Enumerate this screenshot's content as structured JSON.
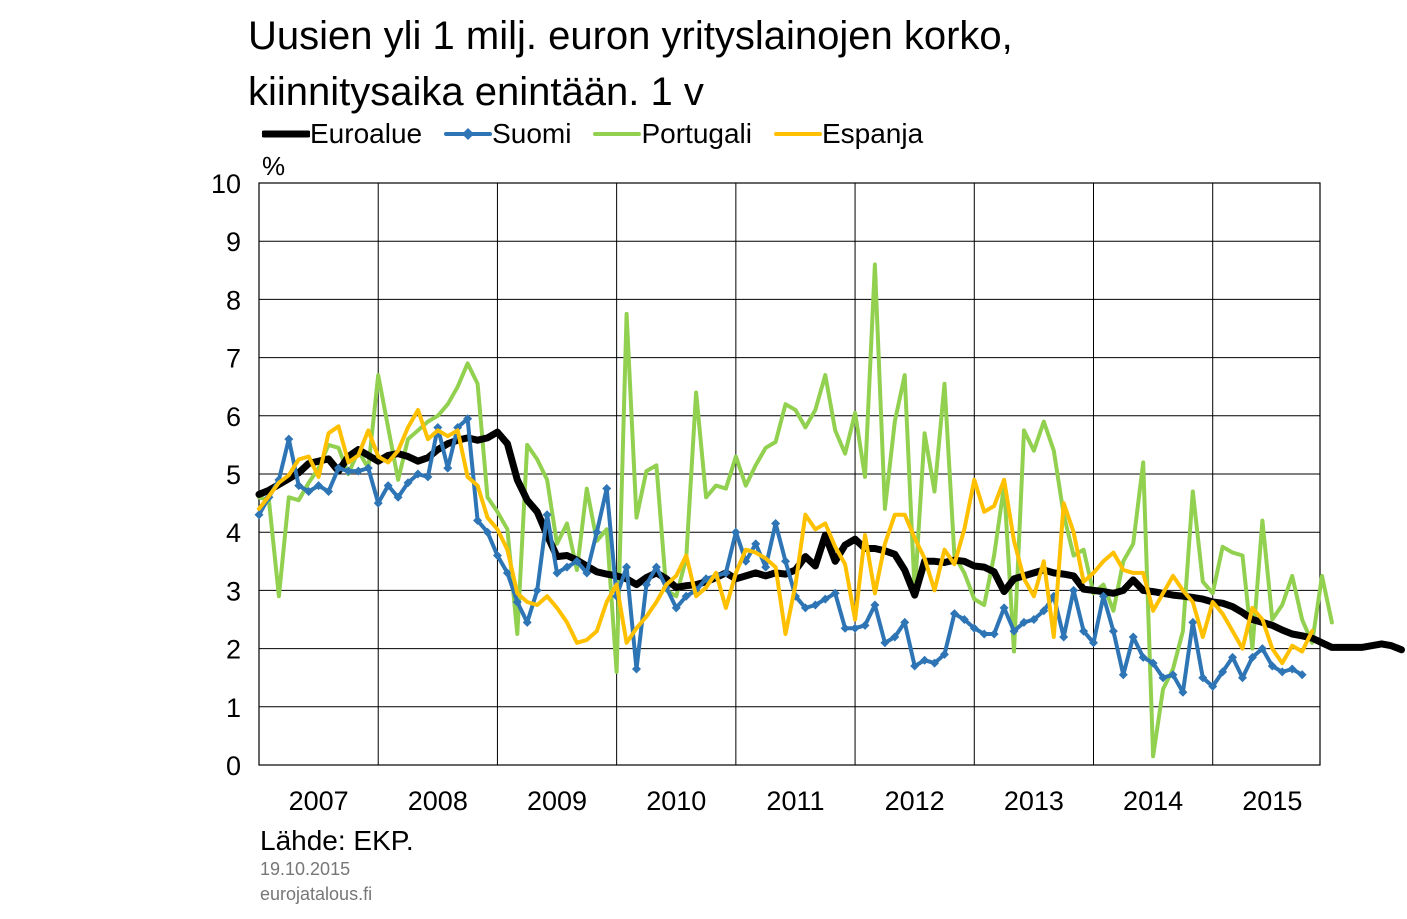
{
  "chart_data": {
    "type": "line",
    "title_lines": [
      "Uusien yli 1 milj. euron yrityslainojen korko,",
      "kiinnitysaika enintään. 1 v"
    ],
    "ylabel": "%",
    "ylim": [
      0,
      10
    ],
    "yticks": [
      0,
      1,
      2,
      3,
      4,
      5,
      6,
      7,
      8,
      9,
      10
    ],
    "xlim": [
      2007,
      2015.9
    ],
    "xtick_labels": [
      "2007",
      "2008",
      "2009",
      "2010",
      "2011",
      "2012",
      "2013",
      "2014",
      "2015"
    ],
    "grid": true,
    "legend_position": "top",
    "series": [
      {
        "name": "Euroalue",
        "color": "#000000",
        "marker": "none",
        "start": 2007.0,
        "step": 0.0833333,
        "values": [
          4.65,
          4.72,
          4.82,
          4.92,
          5.02,
          5.18,
          5.22,
          5.26,
          5.05,
          5.3,
          5.42,
          5.32,
          5.22,
          5.32,
          5.35,
          5.3,
          5.22,
          5.28,
          5.42,
          5.52,
          5.58,
          5.62,
          5.58,
          5.62,
          5.72,
          5.52,
          4.9,
          4.55,
          4.35,
          3.95,
          3.58,
          3.6,
          3.52,
          3.42,
          3.32,
          3.28,
          3.25,
          3.2,
          3.1,
          3.22,
          3.3,
          3.2,
          3.05,
          3.08,
          3.1,
          3.15,
          3.22,
          3.3,
          3.2,
          3.25,
          3.3,
          3.25,
          3.3,
          3.28,
          3.35,
          3.58,
          3.42,
          3.95,
          3.5,
          3.78,
          3.88,
          3.72,
          3.72,
          3.68,
          3.62,
          3.35,
          2.92,
          3.5,
          3.5,
          3.48,
          3.52,
          3.5,
          3.42,
          3.4,
          3.32,
          2.98,
          3.2,
          3.25,
          3.3,
          3.35,
          3.3,
          3.28,
          3.25,
          3.02,
          3.0,
          2.98,
          2.95,
          3.0,
          3.18,
          3.0,
          2.98,
          2.95,
          2.92,
          2.9,
          2.88,
          2.85,
          2.8,
          2.78,
          2.72,
          2.62,
          2.5,
          2.45,
          2.4,
          2.32,
          2.25,
          2.22,
          2.18,
          2.1,
          2.02,
          2.02,
          2.02,
          2.02,
          2.05,
          2.08,
          2.05,
          1.98
        ]
      },
      {
        "name": "Suomi",
        "color": "#2E75B6",
        "marker": "diamond",
        "start": 2007.0,
        "step": 0.0833333,
        "values": [
          4.3,
          4.6,
          4.9,
          5.6,
          4.8,
          4.7,
          4.8,
          4.7,
          5.1,
          5.05,
          5.05,
          5.1,
          4.5,
          4.8,
          4.6,
          4.85,
          5.0,
          4.95,
          5.8,
          5.1,
          5.8,
          5.95,
          4.2,
          4.0,
          3.6,
          3.3,
          2.8,
          2.45,
          3.0,
          4.3,
          3.3,
          3.4,
          3.5,
          3.3,
          4.0,
          4.75,
          2.9,
          3.4,
          1.65,
          3.1,
          3.4,
          3.05,
          2.7,
          2.9,
          3.0,
          3.2,
          3.25,
          3.3,
          4.0,
          3.5,
          3.8,
          3.4,
          4.15,
          3.5,
          2.9,
          2.7,
          2.75,
          2.85,
          2.95,
          2.35,
          2.35,
          2.4,
          2.75,
          2.1,
          2.2,
          2.45,
          1.7,
          1.8,
          1.75,
          1.9,
          2.6,
          2.5,
          2.35,
          2.25,
          2.25,
          2.7,
          2.3,
          2.45,
          2.5,
          2.65,
          2.9,
          2.2,
          3.0,
          2.3,
          2.1,
          2.9,
          2.3,
          1.55,
          2.2,
          1.85,
          1.75,
          1.5,
          1.55,
          1.25,
          2.45,
          1.5,
          1.35,
          1.6,
          1.85,
          1.5,
          1.85,
          2.0,
          1.7,
          1.6,
          1.65,
          1.55
        ]
      },
      {
        "name": "Portugali",
        "color": "#92D050",
        "marker": "none",
        "start": 2007.0,
        "step": 0.0833333,
        "values": [
          4.6,
          4.55,
          2.9,
          4.6,
          4.55,
          4.85,
          5.1,
          5.5,
          5.45,
          5.0,
          5.4,
          5.1,
          6.7,
          5.8,
          4.9,
          5.6,
          5.75,
          5.9,
          6.0,
          6.2,
          6.5,
          6.9,
          6.55,
          4.6,
          4.35,
          4.05,
          2.25,
          5.5,
          5.25,
          4.9,
          3.8,
          4.15,
          3.35,
          4.75,
          3.85,
          4.05,
          1.6,
          7.75,
          4.25,
          5.05,
          5.15,
          3.0,
          2.9,
          3.55,
          6.4,
          4.6,
          4.8,
          4.75,
          5.3,
          4.8,
          5.15,
          5.45,
          5.55,
          6.2,
          6.1,
          5.8,
          6.1,
          6.7,
          5.75,
          5.35,
          6.05,
          4.95,
          8.6,
          4.4,
          5.9,
          6.7,
          2.95,
          5.7,
          4.7,
          6.55,
          3.6,
          3.3,
          2.85,
          2.75,
          3.6,
          4.8,
          1.95,
          5.75,
          5.4,
          5.9,
          5.4,
          4.3,
          3.6,
          3.7,
          2.95,
          3.1,
          2.65,
          3.5,
          3.8,
          5.2,
          0.15,
          1.3,
          1.65,
          2.3,
          4.7,
          3.15,
          2.95,
          3.75,
          3.65,
          3.6,
          2.0,
          4.2,
          2.5,
          2.75,
          3.25,
          2.5,
          2.1,
          3.25,
          2.45
        ]
      },
      {
        "name": "Espanja",
        "color": "#FFC000",
        "marker": "none",
        "start": 2007.0,
        "step": 0.0833333,
        "values": [
          4.4,
          4.62,
          4.85,
          4.98,
          5.25,
          5.3,
          4.95,
          5.7,
          5.82,
          5.2,
          5.32,
          5.75,
          5.3,
          5.2,
          5.4,
          5.8,
          6.1,
          5.6,
          5.75,
          5.65,
          5.75,
          4.95,
          4.8,
          4.25,
          4.05,
          3.7,
          2.95,
          2.8,
          2.75,
          2.9,
          2.7,
          2.45,
          2.1,
          2.15,
          2.3,
          2.8,
          3.1,
          2.1,
          2.35,
          2.55,
          2.8,
          3.1,
          3.25,
          3.6,
          2.9,
          3.05,
          3.3,
          2.7,
          3.3,
          3.7,
          3.65,
          3.55,
          3.4,
          2.25,
          3.1,
          4.3,
          4.05,
          4.15,
          3.75,
          3.45,
          2.5,
          3.95,
          2.95,
          3.8,
          4.3,
          4.3,
          3.9,
          3.55,
          3.0,
          3.7,
          3.45,
          4.05,
          4.9,
          4.35,
          4.45,
          4.9,
          3.85,
          3.2,
          2.9,
          3.5,
          2.2,
          4.5,
          4.0,
          3.15,
          3.3,
          3.5,
          3.65,
          3.35,
          3.3,
          3.3,
          2.65,
          2.95,
          3.25,
          3.0,
          2.8,
          2.2,
          2.8,
          2.6,
          2.3,
          2.0,
          2.7,
          2.5,
          2.0,
          1.75,
          2.05,
          1.95,
          2.3
        ]
      }
    ]
  },
  "footer": {
    "source": "Lähde: EKP.",
    "date": "19.10.2015",
    "site": "eurojatalous.fi"
  }
}
